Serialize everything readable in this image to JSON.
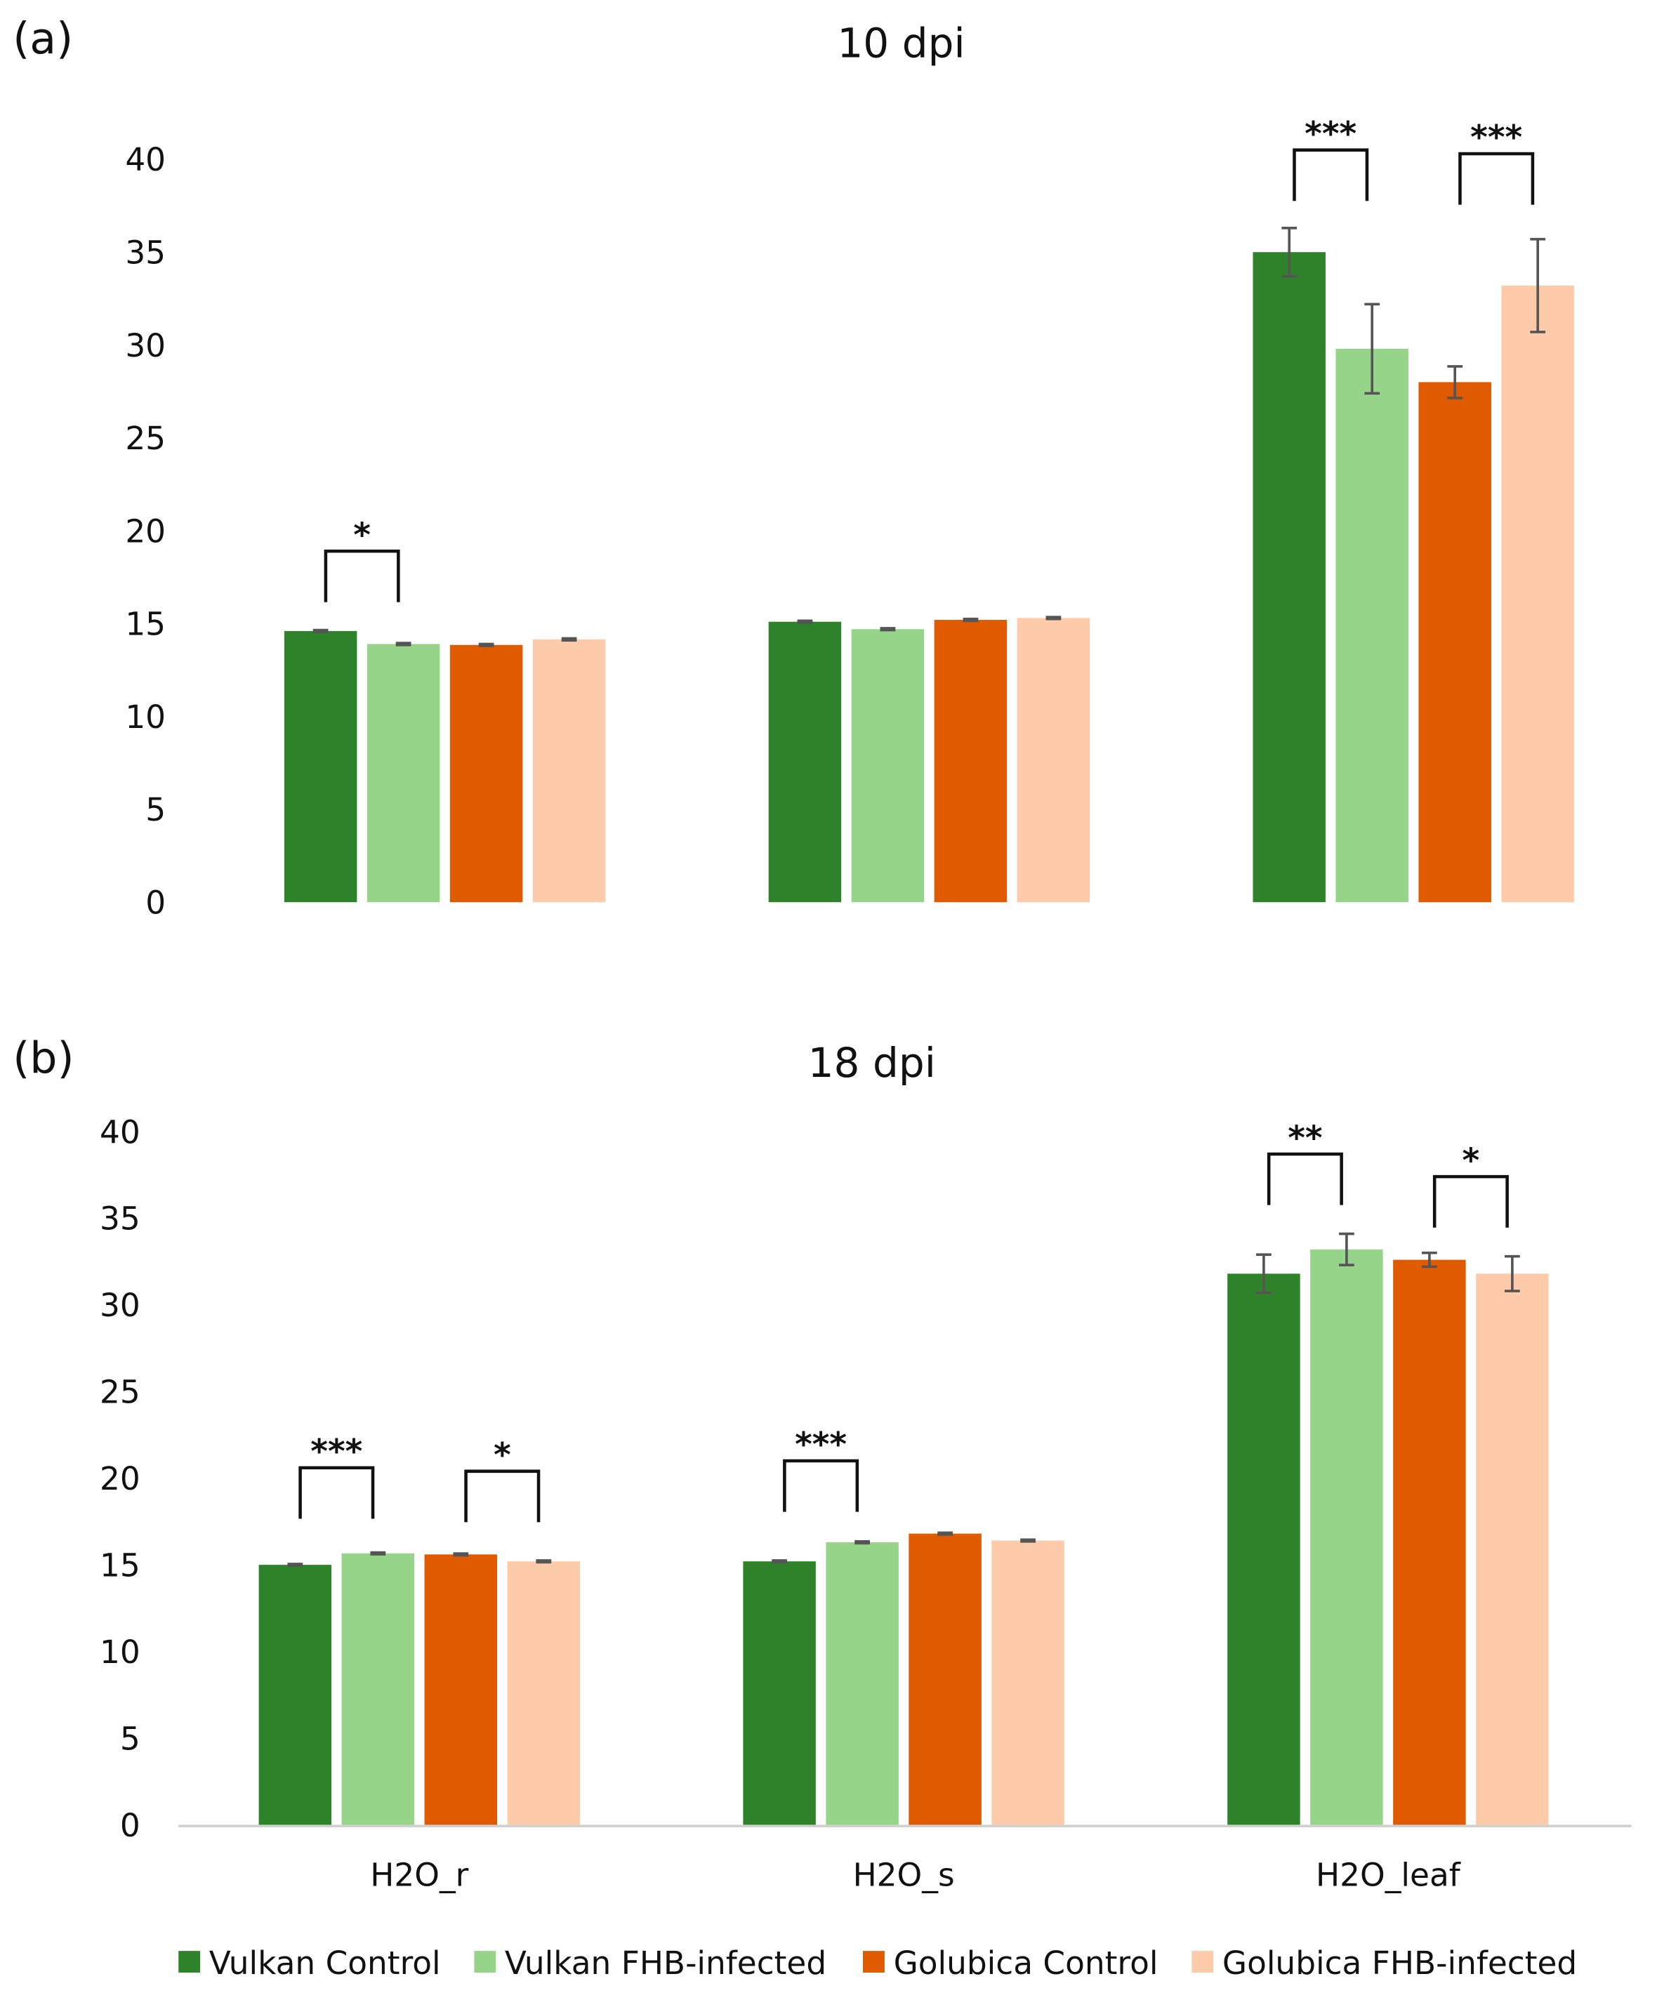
{
  "chart_data": [
    {
      "type": "bar",
      "panel_label": "(a)",
      "title": "10 dpi",
      "categories": [
        "H2O_r",
        "H2O_s",
        "H2O_leaf"
      ],
      "show_category_labels": false,
      "ylim": [
        0,
        40
      ],
      "yticks": [
        0,
        5,
        10,
        15,
        20,
        25,
        30,
        35,
        40
      ],
      "grid": false,
      "series": [
        {
          "name": "Vulkan Control",
          "color": "#2e832a",
          "values": [
            14.6,
            15.1,
            35.0
          ],
          "errors": [
            0.05,
            0.05,
            1.3
          ]
        },
        {
          "name": "Vulkan FHB-infected",
          "color": "#96d48a",
          "values": [
            13.9,
            14.7,
            29.8
          ],
          "errors": [
            0.05,
            0.05,
            2.4
          ]
        },
        {
          "name": "Golubica Control",
          "color": "#e05a00",
          "values": [
            13.85,
            15.2,
            28.0
          ],
          "errors": [
            0.05,
            0.05,
            0.85
          ]
        },
        {
          "name": "Golubica FHB-infected",
          "color": "#fdcbaa",
          "values": [
            14.15,
            15.3,
            33.2
          ],
          "errors": [
            0.05,
            0.05,
            2.5
          ]
        }
      ],
      "significance": [
        {
          "category": 0,
          "pair": [
            0,
            1
          ],
          "label": "*",
          "level": 18.9
        },
        {
          "category": 2,
          "pair": [
            0,
            1
          ],
          "label": "***",
          "level": 40.5
        },
        {
          "category": 2,
          "pair": [
            2,
            3
          ],
          "label": "***",
          "level": 40.3
        }
      ]
    },
    {
      "type": "bar",
      "panel_label": "(b)",
      "title": "18 dpi",
      "categories": [
        "H2O_r",
        "H2O_s",
        "H2O_leaf"
      ],
      "show_category_labels": true,
      "ylim": [
        0,
        40
      ],
      "yticks": [
        0,
        5,
        10,
        15,
        20,
        25,
        30,
        35,
        40
      ],
      "grid": false,
      "legend_position": "bottom",
      "series": [
        {
          "name": "Vulkan Control",
          "color": "#2e832a",
          "values": [
            15.0,
            15.2,
            31.8
          ],
          "errors": [
            0.05,
            0.05,
            1.1
          ]
        },
        {
          "name": "Vulkan FHB-infected",
          "color": "#96d48a",
          "values": [
            15.66,
            16.3,
            33.2
          ],
          "errors": [
            0.05,
            0.05,
            0.9
          ]
        },
        {
          "name": "Golubica Control",
          "color": "#e05a00",
          "values": [
            15.6,
            16.8,
            32.6
          ],
          "errors": [
            0.05,
            0.05,
            0.4
          ]
        },
        {
          "name": "Golubica FHB-infected",
          "color": "#fdcbaa",
          "values": [
            15.2,
            16.4,
            31.8
          ],
          "errors": [
            0.05,
            0.05,
            1.0
          ]
        }
      ],
      "significance": [
        {
          "category": 0,
          "pair": [
            0,
            1
          ],
          "label": "***",
          "level": 20.6
        },
        {
          "category": 0,
          "pair": [
            2,
            3
          ],
          "label": "*",
          "level": 20.4
        },
        {
          "category": 1,
          "pair": [
            0,
            1
          ],
          "label": "***",
          "level": 21.0
        },
        {
          "category": 2,
          "pair": [
            0,
            1
          ],
          "label": "**",
          "level": 38.7
        },
        {
          "category": 2,
          "pair": [
            2,
            3
          ],
          "label": "*",
          "level": 37.4
        }
      ]
    }
  ],
  "legend": [
    "Vulkan Control",
    "Vulkan FHB-infected",
    "Golubica Control",
    "Golubica FHB-infected"
  ]
}
